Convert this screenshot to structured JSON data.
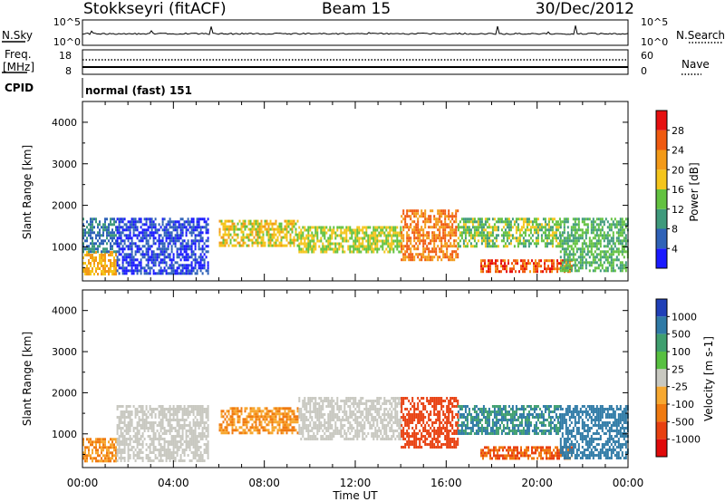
{
  "header": {
    "station": "Stokkseyri (fitACF)",
    "beam": "Beam 15",
    "date": "30/Dec/2012"
  },
  "sky_panel": {
    "left_label": "N.Sky",
    "right_label": "N.Search",
    "left_top": "10^5",
    "left_bottom": "10^0",
    "right_top": "10^5",
    "right_bottom": "10^0"
  },
  "freq_panel": {
    "left_label_line1": "Freq.",
    "left_label_line2": "[MHz]",
    "right_label": "Nave",
    "left_top": "18",
    "left_bottom": "8",
    "right_top": "60",
    "right_bottom": "0"
  },
  "cpid_panel": {
    "label": "CPID",
    "text": "normal (fast) 151"
  },
  "power_panel": {
    "ylabel": "Slant Range [km]",
    "cbar_label": "Power [dB]",
    "cbar_ticks": [
      "4",
      "8",
      "12",
      "16",
      "20",
      "24",
      "28"
    ],
    "cbar_colors": [
      "#1a1aff",
      "#2f62b8",
      "#3f9a7c",
      "#63c240",
      "#f4c51c",
      "#f39a18",
      "#f05a10",
      "#e61010"
    ]
  },
  "velocity_panel": {
    "ylabel": "Slant Range [km]",
    "cbar_label": "Velocity [m s-1]",
    "cbar_ticks": [
      "1000",
      "500",
      "100",
      "25",
      "-25",
      "-100",
      "-500",
      "-1000"
    ],
    "cbar_colors": [
      "#2040b8",
      "#2f7aa6",
      "#3f9f6f",
      "#57c040",
      "#c8c8c0",
      "#f7a830",
      "#f07a10",
      "#e84010",
      "#e00a0a"
    ]
  },
  "xaxis": {
    "label": "Time UT",
    "ticks": [
      "00:00",
      "04:00",
      "08:00",
      "12:00",
      "16:00",
      "20:00",
      "00:00"
    ]
  },
  "chart_data": [
    {
      "type": "heatmap",
      "name_panel": "power",
      "xlabel": "Time UT",
      "ylabel": "Slant Range [km]",
      "xlim": [
        0,
        24
      ],
      "ylim": [
        180,
        4500
      ],
      "yticks": [
        1000,
        2000,
        3000,
        4000
      ],
      "colorbar": {
        "label": "Power [dB]",
        "ticks": [
          4,
          8,
          12,
          16,
          20,
          24,
          28
        ]
      },
      "regions": [
        {
          "t": [
            0.0,
            1.5
          ],
          "r": [
            350,
            900
          ],
          "value": 20
        },
        {
          "t": [
            0.0,
            1.5
          ],
          "r": [
            900,
            1700
          ],
          "value": 8
        },
        {
          "t": [
            1.5,
            5.5
          ],
          "r": [
            350,
            1700
          ],
          "value": 4
        },
        {
          "t": [
            6.0,
            9.5
          ],
          "r": [
            1050,
            1650
          ],
          "value": 18
        },
        {
          "t": [
            9.5,
            14.0
          ],
          "r": [
            850,
            1500
          ],
          "value": 16
        },
        {
          "t": [
            14.0,
            16.5
          ],
          "r": [
            700,
            1900
          ],
          "value": 24
        },
        {
          "t": [
            16.5,
            21.0
          ],
          "r": [
            1000,
            1700
          ],
          "value": 14
        },
        {
          "t": [
            17.5,
            21.5
          ],
          "r": [
            400,
            700
          ],
          "value": 26
        },
        {
          "t": [
            21.0,
            24.0
          ],
          "r": [
            400,
            1700
          ],
          "value": 12
        }
      ]
    },
    {
      "type": "heatmap",
      "name_panel": "velocity",
      "xlabel": "Time UT",
      "ylabel": "Slant Range [km]",
      "xlim": [
        0,
        24
      ],
      "ylim": [
        180,
        4500
      ],
      "yticks": [
        1000,
        2000,
        3000,
        4000
      ],
      "colorbar": {
        "label": "Velocity [m s-1]",
        "ticks": [
          1000,
          500,
          100,
          25,
          -25,
          -100,
          -500,
          -1000
        ]
      },
      "regions": [
        {
          "t": [
            0.0,
            1.5
          ],
          "r": [
            350,
            900
          ],
          "value": -100
        },
        {
          "t": [
            1.5,
            5.5
          ],
          "r": [
            350,
            1700
          ],
          "value": 0
        },
        {
          "t": [
            6.0,
            9.5
          ],
          "r": [
            1050,
            1650
          ],
          "value": -100
        },
        {
          "t": [
            9.5,
            14.0
          ],
          "r": [
            850,
            1900
          ],
          "value": 0
        },
        {
          "t": [
            14.0,
            16.5
          ],
          "r": [
            700,
            1900
          ],
          "value": -500
        },
        {
          "t": [
            16.5,
            21.0
          ],
          "r": [
            1000,
            1700
          ],
          "value": 100
        },
        {
          "t": [
            17.5,
            21.5
          ],
          "r": [
            400,
            700
          ],
          "value": -300
        },
        {
          "t": [
            21.0,
            24.0
          ],
          "r": [
            400,
            1700
          ],
          "value": 300
        }
      ]
    }
  ]
}
